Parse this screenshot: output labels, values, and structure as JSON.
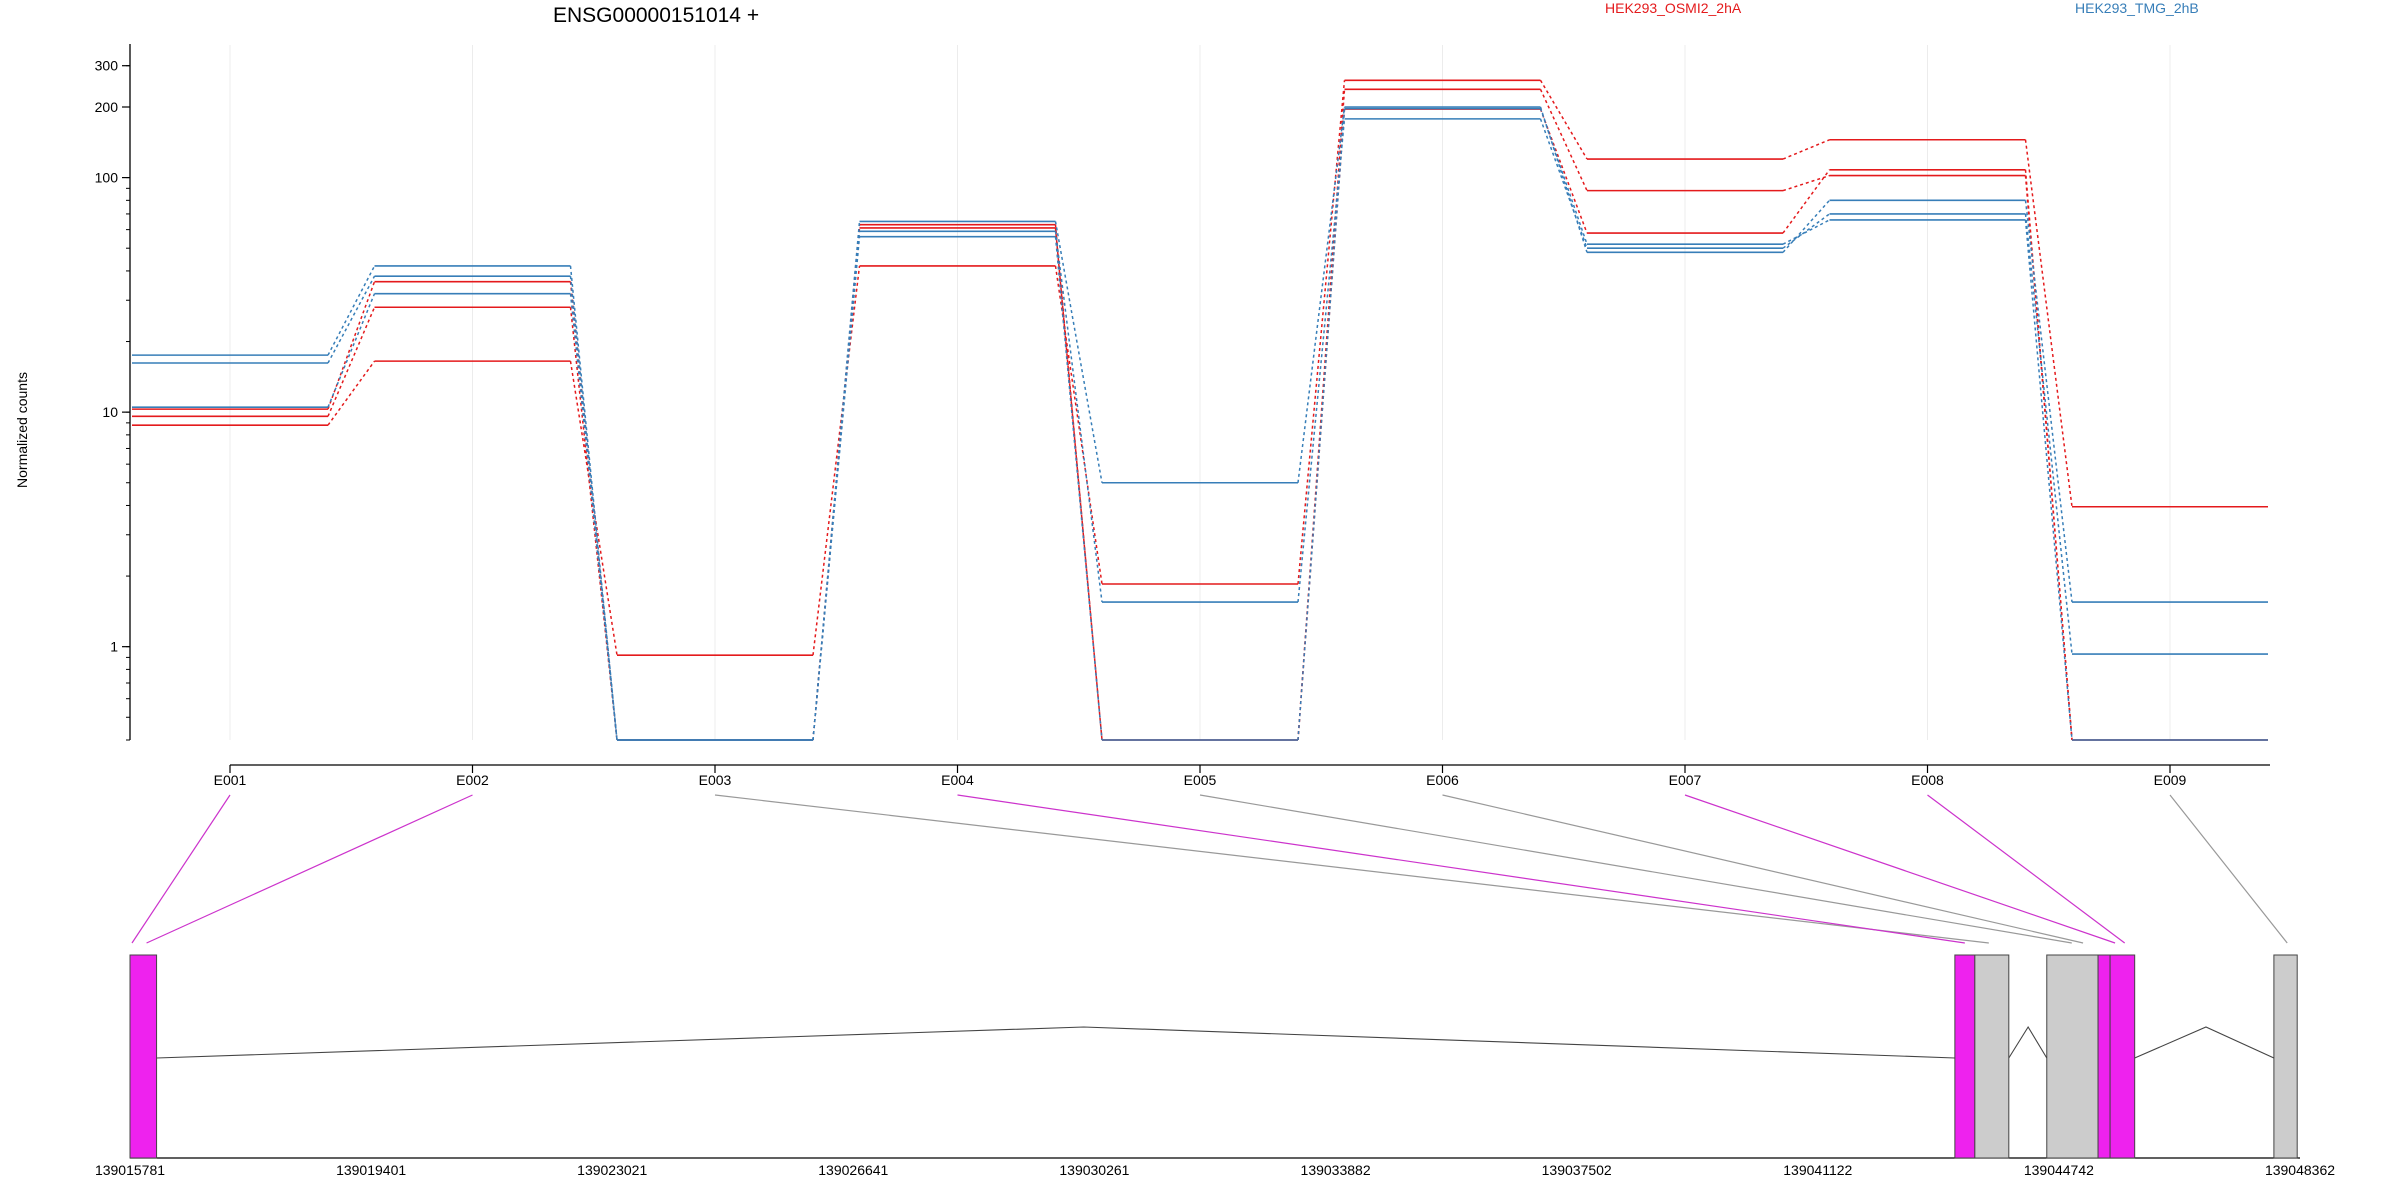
{
  "chart_data": {
    "type": "line",
    "title": "ENSG00000151014 +",
    "ylabel": "Normalized counts",
    "yscale": "log",
    "y_ticks": [
      1,
      10,
      100,
      200,
      300
    ],
    "exons": [
      "E001",
      "E002",
      "E003",
      "E004",
      "E005",
      "E006",
      "E007",
      "E008",
      "E009"
    ],
    "legend": [
      {
        "name": "HEK293_OSMI2_2hA",
        "color": "#e41a1c"
      },
      {
        "name": "HEK293_TMG_2hB",
        "color": "#377eb8"
      }
    ],
    "series": [
      {
        "group": "HEK293_OSMI2_2hA",
        "color": "#e41a1c",
        "values": [
          8.8,
          16.5,
          0.92,
          42,
          1.85,
          260,
          120,
          145,
          3.95
        ]
      },
      {
        "group": "HEK293_OSMI2_2hA",
        "color": "#e41a1c",
        "values": [
          9.6,
          28,
          0.4,
          61,
          0.4,
          238,
          88,
          102,
          0.4
        ]
      },
      {
        "group": "HEK293_OSMI2_2hA",
        "color": "#e41a1c",
        "values": [
          10.3,
          36,
          0.4,
          63,
          0.4,
          196,
          58,
          108,
          0.4
        ]
      },
      {
        "group": "HEK293_TMG_2hB",
        "color": "#377eb8",
        "values": [
          17.5,
          42,
          0.4,
          65,
          5,
          200,
          48,
          80,
          1.55
        ]
      },
      {
        "group": "HEK293_TMG_2hB",
        "color": "#377eb8",
        "values": [
          16.2,
          38,
          0.4,
          59,
          1.55,
          178,
          50,
          70,
          0.93
        ]
      },
      {
        "group": "HEK293_TMG_2hB",
        "color": "#377eb8",
        "values": [
          10.5,
          32,
          0.4,
          56,
          0.4,
          197,
          52,
          66,
          0.4
        ]
      }
    ],
    "gene_model": {
      "genomic_ticks": [
        "139015781",
        "139019401",
        "139023021",
        "139026641",
        "139030261",
        "139033882",
        "139037502",
        "139041122",
        "139044742",
        "139048362"
      ],
      "exon_blocks": [
        {
          "exon": "E001",
          "start": 139015781,
          "end": 139016180,
          "color": "#ee22ee"
        },
        {
          "exon": "E002",
          "start": 139015781,
          "end": 139016180,
          "color": "#ee22ee"
        },
        {
          "exon": "E004",
          "start": 139043180,
          "end": 139043480,
          "color": "#ee22ee"
        },
        {
          "exon": "E003",
          "start": 139043480,
          "end": 139043990,
          "color": "#cccccc"
        },
        {
          "exon": "E005",
          "start": 139044560,
          "end": 139045330,
          "color": "#cccccc"
        },
        {
          "exon": "E007",
          "start": 139045330,
          "end": 139045510,
          "color": "#ee22ee"
        },
        {
          "exon": "E008",
          "start": 139045510,
          "end": 139045880,
          "color": "#ee22ee"
        },
        {
          "exon": "E006",
          "start": 139044560,
          "end": 139045330,
          "color": "#cccccc"
        },
        {
          "exon": "E009",
          "start": 139047970,
          "end": 139048320,
          "color": "#cccccc"
        }
      ]
    }
  }
}
